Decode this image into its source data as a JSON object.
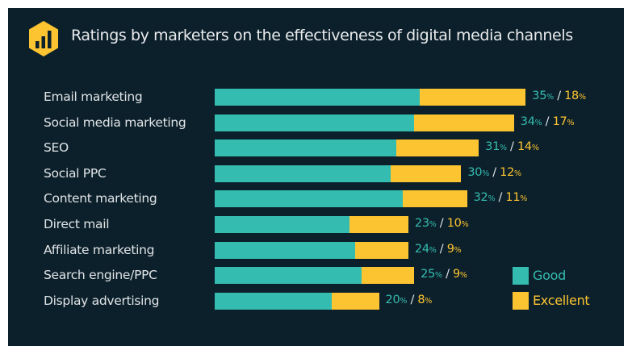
{
  "chart_data": {
    "type": "bar",
    "stacked": true,
    "orientation": "horizontal",
    "title": "Ratings by marketers on the effectiveness of digital media channels",
    "categories": [
      "Email marketing",
      "Social media marketing",
      "SEO",
      "Social PPC",
      "Content marketing",
      "Direct mail",
      "Affiliate marketing",
      "Search engine/PPC",
      "Display advertising"
    ],
    "series": [
      {
        "name": "Good",
        "color": "#35bcb0",
        "values": [
          35,
          34,
          31,
          30,
          32,
          23,
          24,
          25,
          20
        ]
      },
      {
        "name": "Excellent",
        "color": "#fdc431",
        "values": [
          18,
          17,
          14,
          12,
          11,
          10,
          9,
          9,
          8
        ]
      }
    ],
    "value_suffix": "%",
    "value_separator": "/",
    "legend": {
      "position": "bottom-right",
      "items": [
        "Good",
        "Excellent"
      ]
    },
    "xlabel": "",
    "ylabel": "",
    "grid": false
  },
  "header": {
    "icon": "bar-chart-hexagon-icon",
    "title": "Ratings by marketers on the effectiveness of digital media channels"
  },
  "colors": {
    "background": "#0c202b",
    "good": "#35bcb0",
    "excellent": "#fdc431",
    "text": "#e0e4e6"
  }
}
